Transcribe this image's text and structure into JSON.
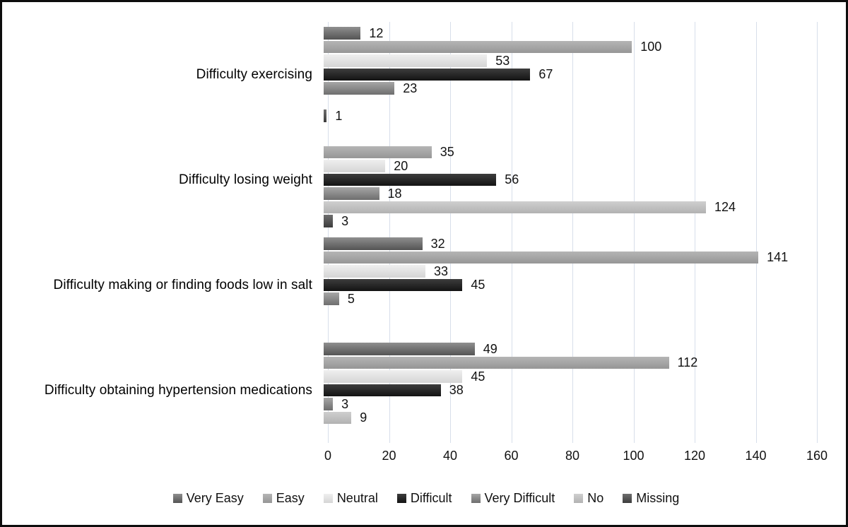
{
  "chart_data": {
    "type": "bar",
    "orientation": "horizontal",
    "title": "",
    "xlabel": "",
    "ylabel": "",
    "xlim": [
      0,
      160
    ],
    "xticks": [
      0,
      20,
      40,
      60,
      80,
      100,
      120,
      140,
      160
    ],
    "grid": "vertical",
    "gridline_color": "#d7deea",
    "data_labels": true,
    "legend_position": "bottom",
    "categories": [
      "Difficulty exercising",
      "Difficulty losing weight",
      "Difficulty making or finding foods low in salt",
      "Difficulty obtaining hypertension medications"
    ],
    "series": [
      {
        "name": "Very Easy",
        "color_top": "#8f8f8f",
        "color_bottom": "#545454",
        "values": [
          12,
          0,
          32,
          49
        ]
      },
      {
        "name": "Easy",
        "color_top": "#b5b5b5",
        "color_bottom": "#969696",
        "values": [
          100,
          35,
          141,
          112
        ]
      },
      {
        "name": "Neutral",
        "color_top": "#efefef",
        "color_bottom": "#d5d5d5",
        "values": [
          53,
          20,
          33,
          45
        ]
      },
      {
        "name": "Difficult",
        "color_top": "#3d3d3d",
        "color_bottom": "#131313",
        "values": [
          67,
          56,
          45,
          38
        ]
      },
      {
        "name": "Very Difficult",
        "color_top": "#a6a6a6",
        "color_bottom": "#6e6e6e",
        "values": [
          23,
          18,
          5,
          3
        ]
      },
      {
        "name": "No",
        "color_top": "#cfcfcf",
        "color_bottom": "#b2b2b2",
        "values": [
          0,
          124,
          0,
          9
        ]
      },
      {
        "name": "Missing",
        "color_top": "#6f6f6f",
        "color_bottom": "#3c3c3c",
        "values": [
          1,
          3,
          0,
          0
        ]
      }
    ]
  }
}
